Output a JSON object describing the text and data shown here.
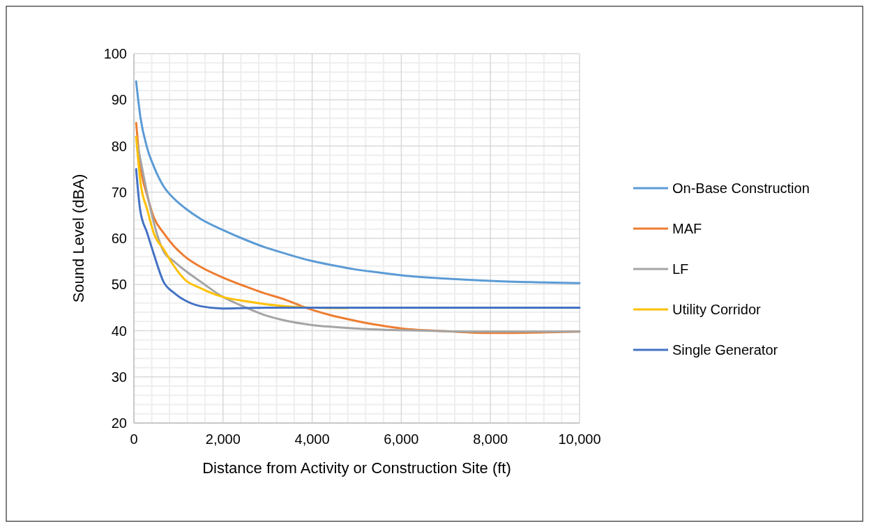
{
  "chart_data": {
    "type": "line",
    "xlabel": "Distance from Activity or Construction Site (ft)",
    "ylabel": "Sound Level (dBA)",
    "xlim": [
      0,
      10000
    ],
    "xticks": [
      {
        "value": 0,
        "label": "0"
      },
      {
        "value": 2000,
        "label": "2,000"
      },
      {
        "value": 4000,
        "label": "4,000"
      },
      {
        "value": 6000,
        "label": "6,000"
      },
      {
        "value": 8000,
        "label": "8,000"
      },
      {
        "value": 10000,
        "label": "10,000"
      }
    ],
    "ylim": [
      20,
      100
    ],
    "yticks": [
      20,
      30,
      40,
      50,
      60,
      70,
      80,
      90,
      100
    ],
    "grid": true,
    "legend": "right",
    "marker": "none",
    "line_style": "solid",
    "series": [
      {
        "name": "On-Base Construction",
        "color": "#5b9bd5",
        "x": [
          50,
          150,
          300,
          450,
          670,
          900,
          1140,
          1500,
          2000,
          2500,
          2900,
          3400,
          3950,
          4500,
          4950,
          5500,
          6000,
          7000,
          8000,
          9000,
          10000
        ],
        "values": [
          94,
          86,
          79.5,
          75.5,
          71.2,
          68.6,
          66.6,
          64.2,
          61.8,
          59.7,
          58.2,
          56.7,
          55.2,
          54.1,
          53.3,
          52.6,
          52.0,
          51.3,
          50.8,
          50.5,
          50.3
        ]
      },
      {
        "name": "MAF",
        "color": "#ed7d31",
        "x": [
          50,
          140,
          300,
          450,
          670,
          900,
          1140,
          1500,
          2000,
          2500,
          2900,
          3400,
          3850,
          4400,
          4950,
          5500,
          6000,
          7000,
          8000,
          9000,
          10000
        ],
        "values": [
          85,
          76.1,
          69.2,
          64.5,
          61.1,
          58.3,
          56.1,
          53.8,
          51.5,
          49.6,
          48.2,
          46.7,
          45.0,
          43.4,
          42.2,
          41.2,
          40.5,
          39.9,
          39.5,
          39.6,
          39.8
        ]
      },
      {
        "name": "LF",
        "color": "#a5a5a5",
        "x": [
          50,
          670,
          900,
          1140,
          1500,
          2000,
          2400,
          2900,
          3400,
          3950,
          4500,
          4950,
          6000,
          7000,
          8000,
          9000,
          10000
        ],
        "values": [
          82,
          57.1,
          55.0,
          53.1,
          50.6,
          47.3,
          45.5,
          43.5,
          42.2,
          41.3,
          40.8,
          40.5,
          40.1,
          39.9,
          39.8,
          39.8,
          39.8
        ]
      },
      {
        "name": "Utility Corridor",
        "color": "#ffc000",
        "x": [
          50,
          150,
          300,
          450,
          670,
          900,
          1140,
          1500,
          2000,
          2500,
          2900,
          3400,
          3950,
          4400,
          4800
        ],
        "values": [
          82,
          72,
          66.2,
          61.0,
          57.6,
          54.0,
          51.1,
          49.2,
          47.3,
          46.4,
          45.8,
          45.3,
          45.0,
          44.9,
          44.9
        ]
      },
      {
        "name": "Single Generator",
        "color": "#4472c4",
        "x": [
          50,
          140,
          300,
          450,
          670,
          900,
          1140,
          1500,
          2000,
          2500,
          3000,
          4000,
          5000,
          6000,
          7000,
          8000,
          9000,
          10000
        ],
        "values": [
          75,
          66.2,
          61.1,
          56.5,
          50.5,
          48.2,
          46.6,
          45.3,
          44.8,
          44.9,
          45.0,
          45.0,
          45.0,
          45.0,
          45.0,
          45.0,
          45.0,
          45.0
        ]
      }
    ]
  }
}
